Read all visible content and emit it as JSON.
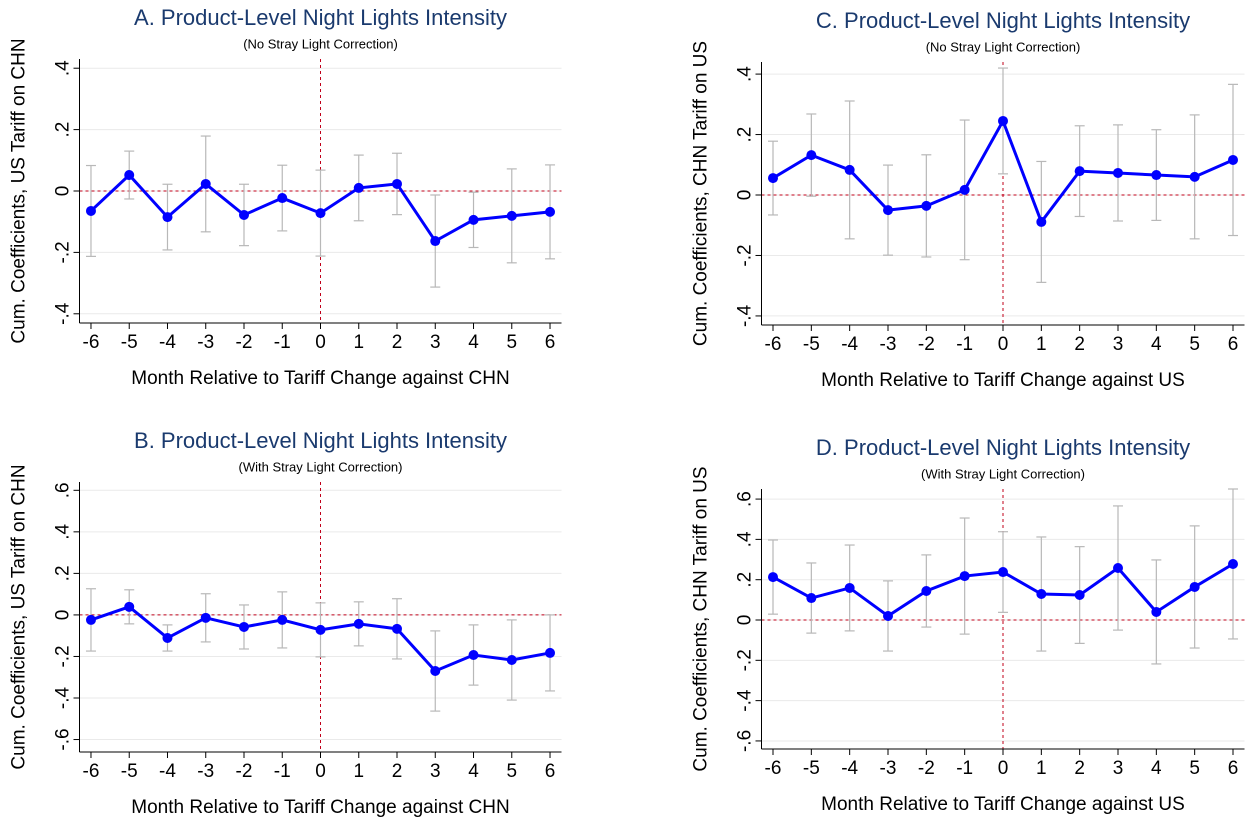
{
  "chart_data": [
    {
      "type": "line",
      "title": "A. Product-Level Night Lights Intensity",
      "subtitle": "(No Stray Light Correction)",
      "xlabel": "Month Relative to Tariff Change against CHN",
      "ylabel": "Cum. Coefficients, US Tariff on CHN",
      "x": [
        -6,
        -5,
        -4,
        -3,
        -2,
        -1,
        0,
        1,
        2,
        3,
        4,
        5,
        6
      ],
      "values": [
        -0.065,
        0.052,
        -0.085,
        0.023,
        -0.078,
        -0.023,
        -0.072,
        0.01,
        0.023,
        -0.163,
        -0.094,
        -0.081,
        -0.068
      ],
      "errors": [
        0.148,
        0.078,
        0.107,
        0.156,
        0.1,
        0.107,
        0.14,
        0.107,
        0.1,
        0.15,
        0.09,
        0.153,
        0.153
      ],
      "xlim": [
        -6.3,
        6.3
      ],
      "xticks": [
        -6,
        -5,
        -4,
        -3,
        -2,
        -1,
        0,
        1,
        2,
        3,
        4,
        5,
        6
      ],
      "ylim": [
        -0.43,
        0.43
      ],
      "yticks": [
        {
          "value": -0.4,
          "label": "-.4"
        },
        {
          "value": -0.2,
          "label": "-.2"
        },
        0,
        {
          "value": 0.2,
          "label": ".2"
        },
        {
          "value": 0.4,
          "label": ".4"
        }
      ],
      "grid": true,
      "color": "#0000ff",
      "error_color": "#b8b8b8",
      "ref_line_x": 0,
      "ref_line_y": 0,
      "ref_color": "#c0001a"
    },
    {
      "type": "line",
      "title": "B. Product-Level Night Lights Intensity",
      "subtitle": "(With Stray Light Correction)",
      "xlabel": "Month Relative to Tariff Change against CHN",
      "ylabel": "Cum. Coefficients, US Tariff on CHN",
      "x": [
        -6,
        -5,
        -4,
        -3,
        -2,
        -1,
        0,
        1,
        2,
        3,
        4,
        5,
        6
      ],
      "values": [
        -0.024,
        0.039,
        -0.111,
        -0.014,
        -0.058,
        -0.024,
        -0.072,
        -0.043,
        -0.067,
        -0.27,
        -0.193,
        -0.217,
        -0.183
      ],
      "errors": [
        0.15,
        0.082,
        0.063,
        0.116,
        0.106,
        0.135,
        0.13,
        0.106,
        0.145,
        0.193,
        0.145,
        0.193,
        0.183
      ],
      "xlim": [
        -6.3,
        6.3
      ],
      "xticks": [
        -6,
        -5,
        -4,
        -3,
        -2,
        -1,
        0,
        1,
        2,
        3,
        4,
        5,
        6
      ],
      "ylim": [
        -0.66,
        0.64
      ],
      "yticks": [
        {
          "value": -0.6,
          "label": "-.6"
        },
        {
          "value": -0.4,
          "label": "-.4"
        },
        {
          "value": -0.2,
          "label": "-.2"
        },
        0,
        {
          "value": 0.2,
          "label": ".2"
        },
        {
          "value": 0.4,
          "label": ".4"
        },
        {
          "value": 0.6,
          "label": ".6"
        }
      ],
      "grid": true,
      "color": "#0000ff",
      "error_color": "#b8b8b8",
      "ref_line_x": 0,
      "ref_line_y": 0,
      "ref_color": "#c0001a"
    },
    {
      "type": "line",
      "title": "C. Product-Level Night Lights Intensity",
      "subtitle": "(No Stray Light Correction)",
      "xlabel": "Month Relative to Tariff Change against US",
      "ylabel": "Cum. Coefficients, CHN Tariff on US",
      "x": [
        -6,
        -5,
        -4,
        -3,
        -2,
        -1,
        0,
        1,
        2,
        3,
        4,
        5,
        6
      ],
      "values": [
        0.056,
        0.132,
        0.083,
        -0.05,
        -0.036,
        0.017,
        0.245,
        -0.089,
        0.079,
        0.073,
        0.066,
        0.06,
        0.116
      ],
      "errors": [
        0.122,
        0.136,
        0.228,
        0.149,
        0.169,
        0.231,
        0.175,
        0.2,
        0.15,
        0.159,
        0.15,
        0.205,
        0.25
      ],
      "xlim": [
        -6.3,
        6.3
      ],
      "xticks": [
        -6,
        -5,
        -4,
        -3,
        -2,
        -1,
        0,
        1,
        2,
        3,
        4,
        5,
        6
      ],
      "ylim": [
        -0.43,
        0.44
      ],
      "yticks": [
        {
          "value": -0.4,
          "label": "-.4"
        },
        {
          "value": -0.2,
          "label": "-.2"
        },
        0,
        {
          "value": 0.2,
          "label": ".2"
        },
        {
          "value": 0.4,
          "label": ".4"
        }
      ],
      "grid": true,
      "color": "#0000ff",
      "error_color": "#b8b8b8",
      "ref_line_x": 0,
      "ref_line_y": 0,
      "ref_color": "#c0001a"
    },
    {
      "type": "line",
      "title": "D. Product-Level Night Lights Intensity",
      "subtitle": "(With Stray Light Correction)",
      "xlabel": "Month Relative to Tariff Change against US",
      "ylabel": "Cum. Coefficients, CHN Tariff on US",
      "x": [
        -6,
        -5,
        -4,
        -3,
        -2,
        -1,
        0,
        1,
        2,
        3,
        4,
        5,
        6
      ],
      "values": [
        0.213,
        0.109,
        0.159,
        0.02,
        0.144,
        0.218,
        0.238,
        0.129,
        0.124,
        0.258,
        0.04,
        0.164,
        0.278
      ],
      "errors": [
        0.184,
        0.174,
        0.213,
        0.174,
        0.179,
        0.288,
        0.2,
        0.283,
        0.24,
        0.308,
        0.258,
        0.303,
        0.372
      ],
      "xlim": [
        -6.3,
        6.3
      ],
      "xticks": [
        -6,
        -5,
        -4,
        -3,
        -2,
        -1,
        0,
        1,
        2,
        3,
        4,
        5,
        6
      ],
      "ylim": [
        -0.64,
        0.65
      ],
      "yticks": [
        {
          "value": -0.6,
          "label": "-.6"
        },
        {
          "value": -0.4,
          "label": "-.4"
        },
        {
          "value": -0.2,
          "label": "-.2"
        },
        0,
        {
          "value": 0.2,
          "label": ".2"
        },
        {
          "value": 0.4,
          "label": ".4"
        },
        {
          "value": 0.6,
          "label": ".6"
        }
      ],
      "grid": true,
      "color": "#0000ff",
      "error_color": "#b8b8b8",
      "ref_line_x": 0,
      "ref_line_y": 0,
      "ref_color": "#c0001a"
    }
  ]
}
